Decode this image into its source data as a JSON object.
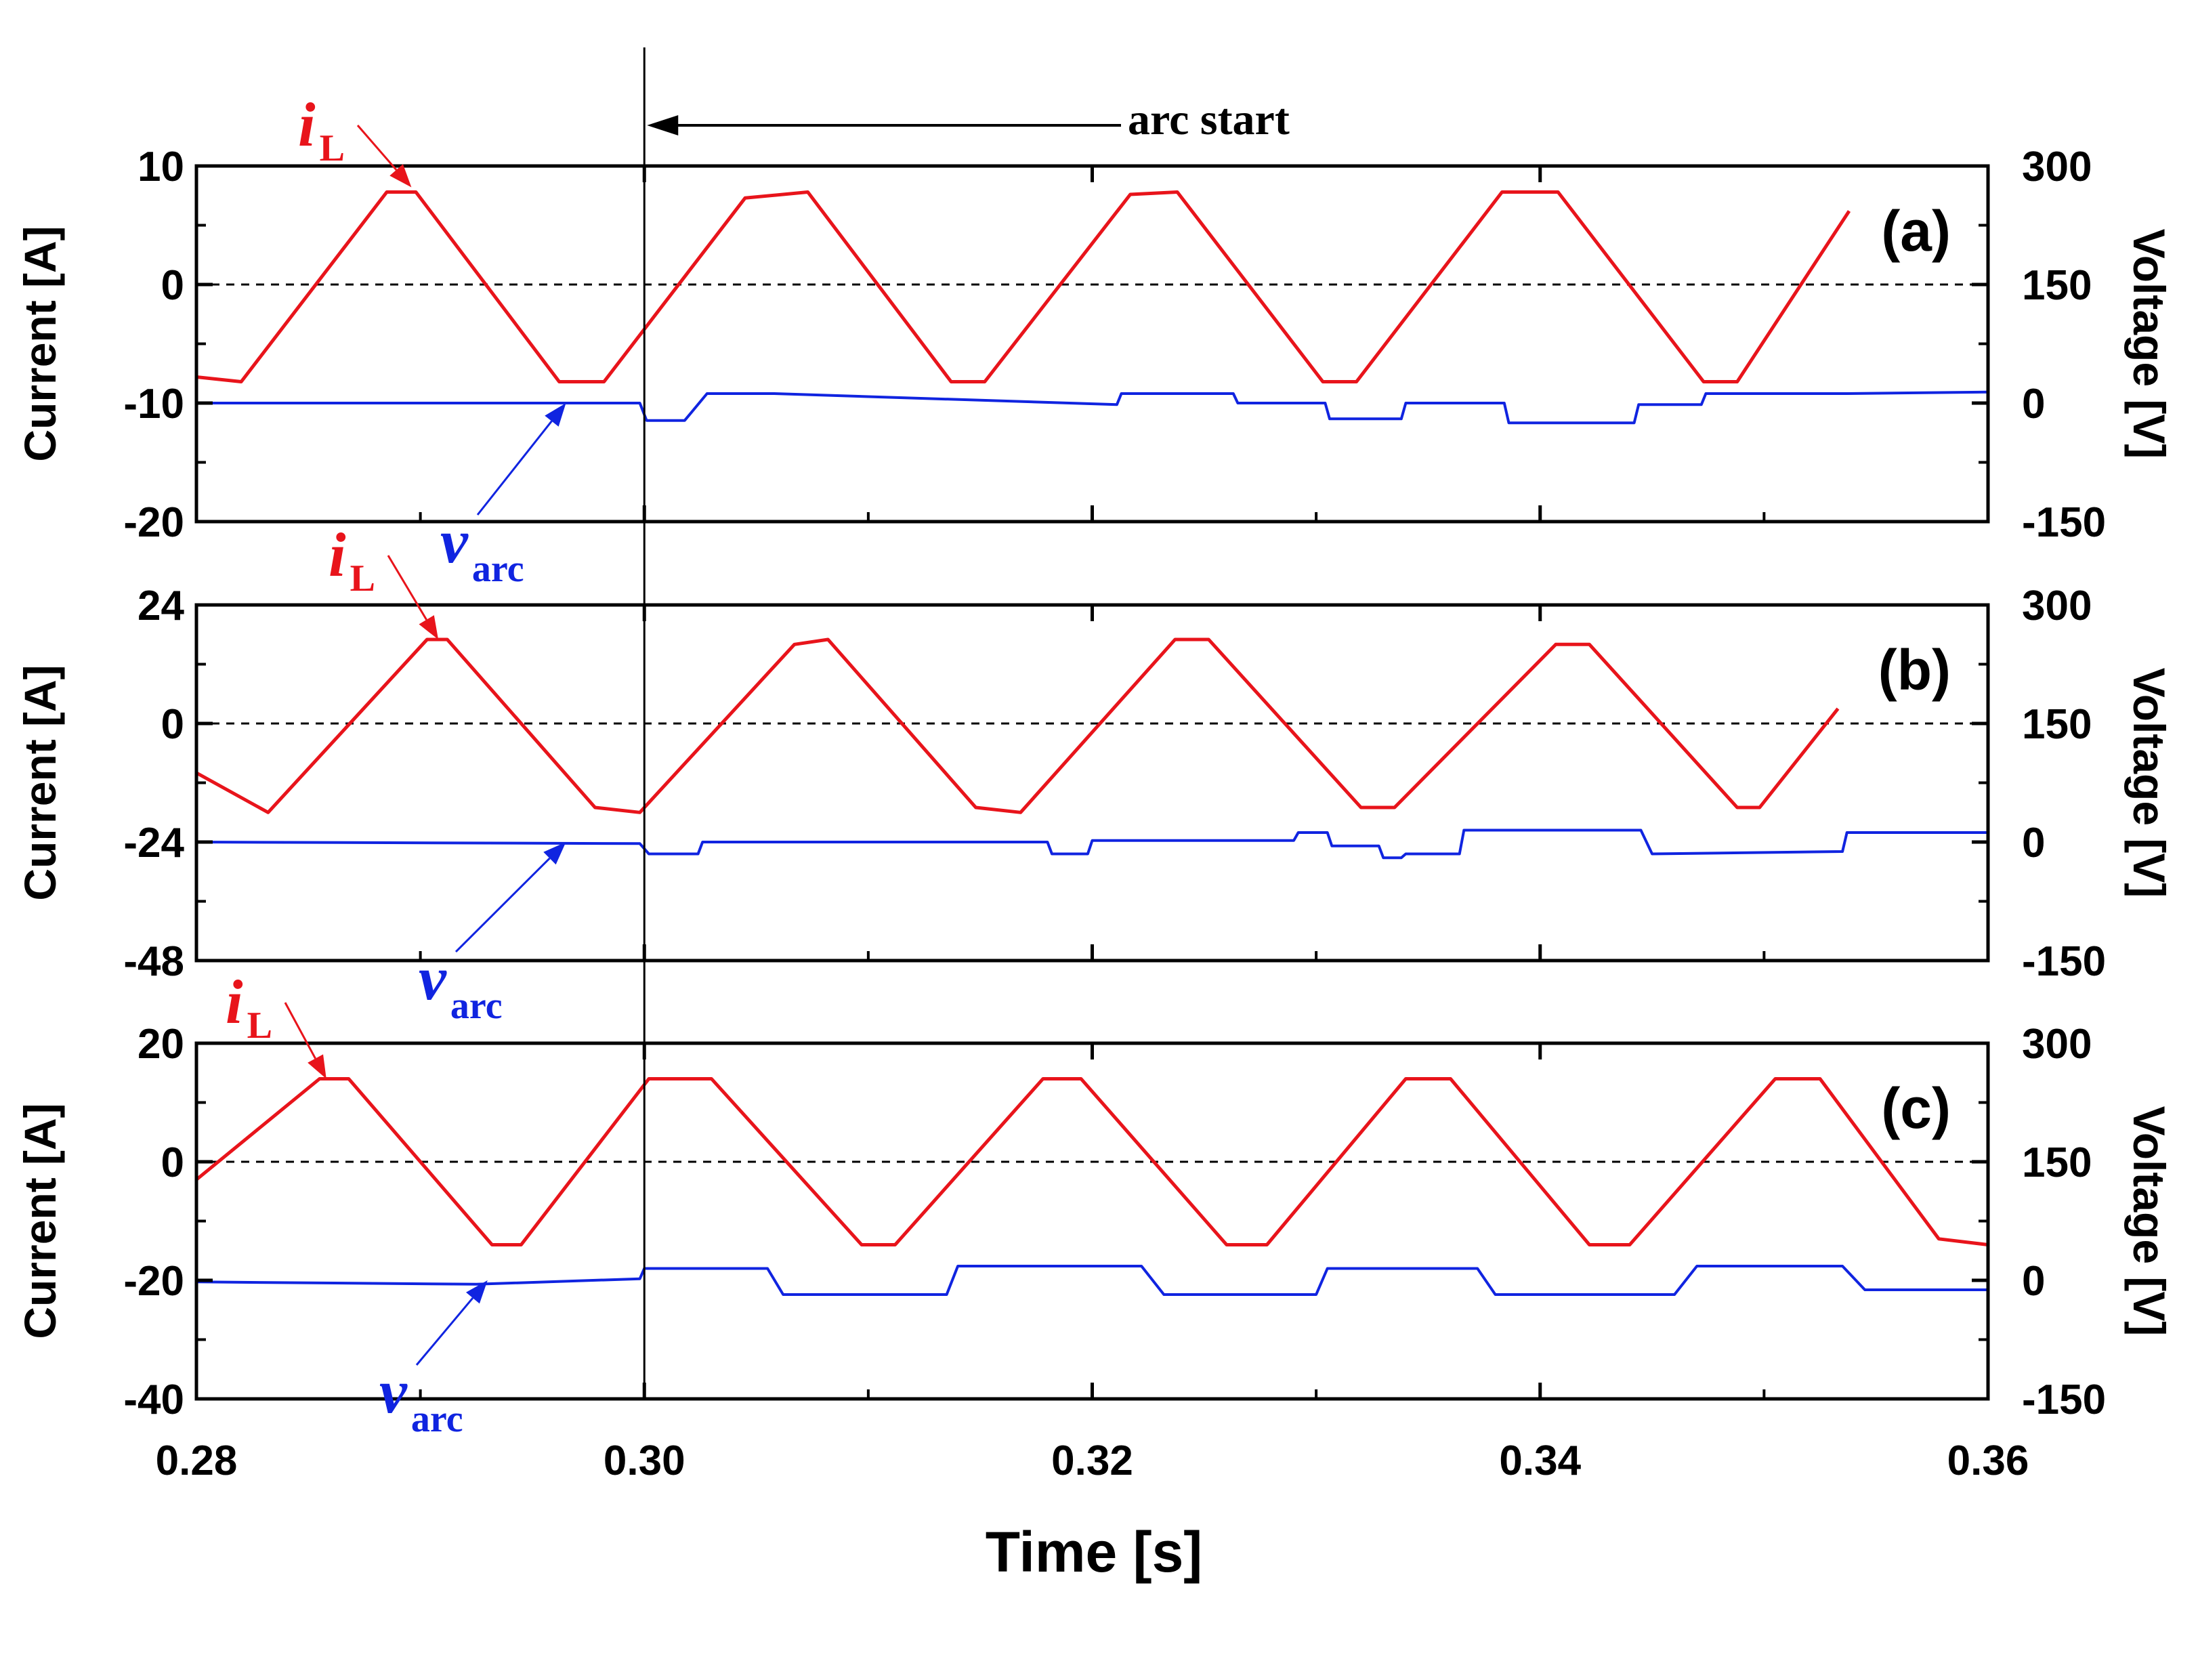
{
  "colors": {
    "current": "#e8141b",
    "voltage": "#1024e0",
    "axis": "#000000"
  },
  "chart_data": [
    {
      "type": "line",
      "panel_label": "(a)",
      "xlabel": "Time [s]",
      "ylabel": "Current [A]",
      "y2label": "Voltage [V]",
      "xlim": [
        0.28,
        0.36
      ],
      "xticks": [
        "0.28",
        "0.30",
        "0.32",
        "0.34",
        "0.36"
      ],
      "ylim": [
        -20,
        10
      ],
      "yticks": [
        "10",
        "0",
        "-10",
        "-20"
      ],
      "y2lim": [
        -150,
        300
      ],
      "y2ticks": [
        "300",
        "150",
        "0",
        "-150"
      ],
      "zero_line": "dashed",
      "annotation": "arc start",
      "arc_start_time": 0.3,
      "series": [
        {
          "name": "iL",
          "symbol": "i",
          "subscript": "L",
          "axis": "left",
          "x": [
            0.28,
            0.282,
            0.2885,
            0.2898,
            0.2962,
            0.2982,
            0.3045,
            0.3073,
            0.3137,
            0.3152,
            0.3217,
            0.3238,
            0.3303,
            0.3318,
            0.3383,
            0.3408,
            0.3473,
            0.3488,
            0.3538
          ],
          "y": [
            -7.8,
            -8.2,
            7.8,
            7.8,
            -8.2,
            -8.2,
            7.3,
            7.8,
            -8.2,
            -8.2,
            7.6,
            7.8,
            -8.2,
            -8.2,
            7.8,
            7.8,
            -8.2,
            -8.2,
            6.2
          ]
        },
        {
          "name": "varc",
          "symbol": "v",
          "subscript": "arc",
          "axis": "right",
          "x": [
            0.28,
            0.2998,
            0.3001,
            0.3018,
            0.3028,
            0.3058,
            0.3211,
            0.3213,
            0.3263,
            0.3265,
            0.3304,
            0.3306,
            0.3338,
            0.334,
            0.3384,
            0.3386,
            0.3442,
            0.3444,
            0.3472,
            0.3474,
            0.3535,
            0.3537,
            0.36
          ],
          "y": [
            0,
            0,
            -22,
            -22,
            12,
            12,
            -2,
            12,
            12,
            0,
            0,
            -20,
            -20,
            0,
            0,
            -25,
            -25,
            -2,
            -2,
            12,
            12,
            12,
            14
          ]
        }
      ]
    },
    {
      "type": "line",
      "panel_label": "(b)",
      "xlim": [
        0.28,
        0.36
      ],
      "ylim": [
        -48,
        24
      ],
      "yticks": [
        "24",
        "0",
        "-24",
        "-48"
      ],
      "y2lim": [
        -150,
        300
      ],
      "y2ticks": [
        "300",
        "150",
        "0",
        "-150"
      ],
      "zero_line": "dashed",
      "series": [
        {
          "name": "iL",
          "symbol": "i",
          "subscript": "L",
          "axis": "left",
          "x": [
            0.28,
            0.2832,
            0.2903,
            0.2912,
            0.2978,
            0.2998,
            0.3067,
            0.3082,
            0.3148,
            0.3168,
            0.3237,
            0.3252,
            0.332,
            0.3335,
            0.3407,
            0.3422,
            0.3488,
            0.3498,
            0.3533
          ],
          "y": [
            -10,
            -18,
            17,
            17,
            -17,
            -18,
            16,
            17,
            -17,
            -18,
            17,
            17,
            -17,
            -17,
            16,
            16,
            -17,
            -17,
            3
          ]
        },
        {
          "name": "varc",
          "symbol": "v",
          "subscript": "arc",
          "axis": "right",
          "x": [
            0.28,
            0.2998,
            0.3002,
            0.3024,
            0.3026,
            0.318,
            0.3182,
            0.3198,
            0.32,
            0.329,
            0.3292,
            0.3305,
            0.3307,
            0.3328,
            0.333,
            0.3338,
            0.334,
            0.3364,
            0.3366,
            0.3445,
            0.345,
            0.3535,
            0.3537,
            0.36
          ],
          "y": [
            0,
            -2,
            -15,
            -15,
            0,
            0,
            -15,
            -15,
            2,
            2,
            12,
            12,
            -5,
            -5,
            -20,
            -20,
            -15,
            -15,
            15,
            15,
            -15,
            -12,
            12,
            12
          ]
        }
      ]
    },
    {
      "type": "line",
      "panel_label": "(c)",
      "xlim": [
        0.28,
        0.36
      ],
      "ylim": [
        -40,
        20
      ],
      "yticks": [
        "20",
        "0",
        "-20",
        "-40"
      ],
      "y2lim": [
        -150,
        300
      ],
      "y2ticks": [
        "300",
        "150",
        "0",
        "-150"
      ],
      "zero_line": "dashed",
      "series": [
        {
          "name": "iL",
          "symbol": "i",
          "subscript": "L",
          "axis": "left",
          "x": [
            0.28,
            0.2855,
            0.2868,
            0.2932,
            0.2945,
            0.3002,
            0.303,
            0.3097,
            0.3112,
            0.3178,
            0.3195,
            0.326,
            0.3278,
            0.334,
            0.336,
            0.3422,
            0.344,
            0.3505,
            0.3525,
            0.3578,
            0.36
          ],
          "y": [
            -3,
            14,
            14,
            -14,
            -14,
            14,
            14,
            -14,
            -14,
            14,
            14,
            -14,
            -14,
            14,
            14,
            -14,
            -14,
            14,
            14,
            -13,
            -14
          ]
        },
        {
          "name": "varc",
          "symbol": "v",
          "subscript": "arc",
          "axis": "right",
          "x": [
            0.28,
            0.2925,
            0.2998,
            0.3,
            0.3055,
            0.3062,
            0.3135,
            0.314,
            0.3222,
            0.3232,
            0.33,
            0.3305,
            0.3372,
            0.338,
            0.346,
            0.347,
            0.3535,
            0.3545,
            0.36
          ],
          "y": [
            -2,
            -5,
            2,
            15,
            15,
            -18,
            -18,
            18,
            18,
            -18,
            -18,
            15,
            15,
            -18,
            -18,
            18,
            18,
            -12,
            -12
          ]
        }
      ]
    }
  ]
}
